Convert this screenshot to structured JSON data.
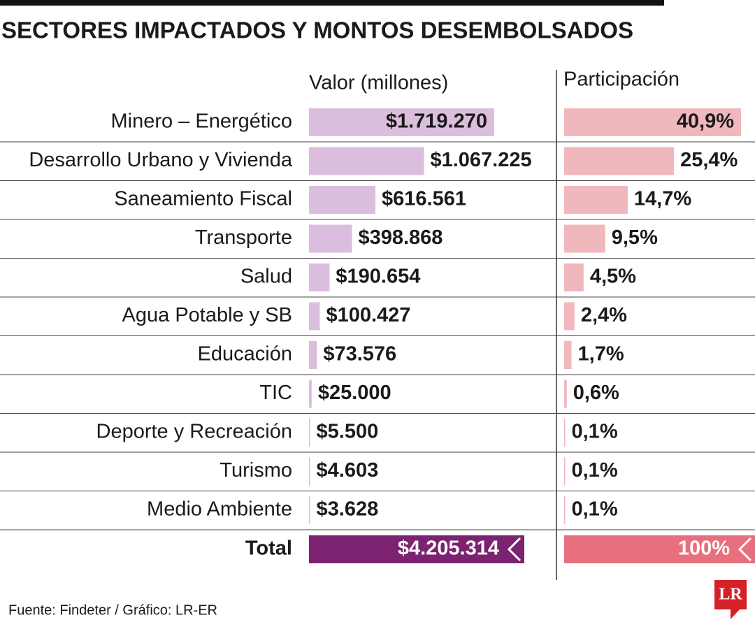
{
  "chart_data": {
    "type": "bar",
    "title": "SECTORES IMPACTADOS Y MONTOS DESEMBOLSADOS",
    "categories": [
      "Minero – Energético",
      "Desarrollo Urbano y Vivienda",
      "Saneamiento Fiscal",
      "Transporte",
      "Salud",
      "Agua Potable y SB",
      "Educación",
      "TIC",
      "Deporte y Recreación",
      "Turismo",
      "Medio Ambiente"
    ],
    "series": [
      {
        "name": "Valor (millones)",
        "color": "#dbbedd",
        "values": [
          1719270,
          1067225,
          616561,
          398868,
          190654,
          100427,
          73576,
          25000,
          5500,
          4603,
          3628
        ],
        "value_labels": [
          "$1.719.270",
          "$1.067.225",
          "$616.561",
          "$398.868",
          "$190.654",
          "$100.427",
          "$73.576",
          "$25.000",
          "$5.500",
          "$4.603",
          "$3.628"
        ]
      },
      {
        "name": "Participación",
        "color": "#f0b8bd",
        "values": [
          40.9,
          25.4,
          14.7,
          9.5,
          4.5,
          2.4,
          1.7,
          0.6,
          0.1,
          0.1,
          0.1
        ],
        "value_labels": [
          "40,9%",
          "25,4%",
          "14,7%",
          "9,5%",
          "4,5%",
          "2,4%",
          "1,7%",
          "0,6%",
          "0,1%",
          "0,1%",
          "0,1%"
        ]
      }
    ],
    "total": {
      "label": "Total",
      "values": [
        4205314,
        100
      ],
      "value_labels": [
        "$4.205.314",
        "100%"
      ],
      "colors": [
        "#7b2370",
        "#e8707e"
      ]
    },
    "source": "Fuente: Findeter / Gráfico: LR-ER",
    "logo": "LR"
  }
}
